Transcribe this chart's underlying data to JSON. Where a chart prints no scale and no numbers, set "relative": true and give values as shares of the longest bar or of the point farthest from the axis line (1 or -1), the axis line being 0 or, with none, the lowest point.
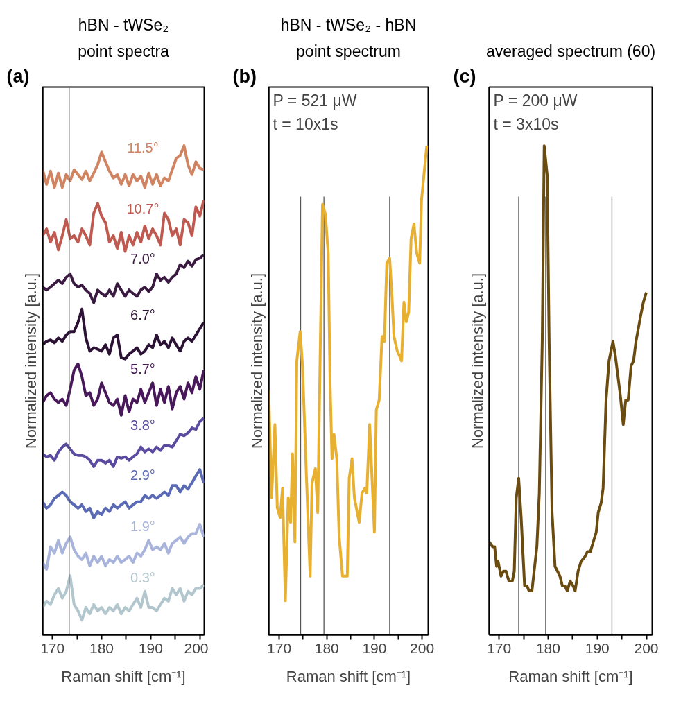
{
  "chart_data": [
    {
      "type": "line",
      "title": "hBN - tWSe₂",
      "subtitle": "point spectra",
      "xlabel": "Raman shift [cm⁻¹]",
      "ylabel": "Normalized intensity [a.u.]",
      "relative": true,
      "xlim": [
        168,
        200.9
      ],
      "xticks": [
        170,
        {
          "value": 175,
          "label": null
        },
        180,
        {
          "value": 185,
          "label": null
        },
        190,
        {
          "value": 195,
          "label": null
        },
        200
      ],
      "ref_lines": [
        {
          "axis": "x",
          "value": 173.4,
          "color": "#555555"
        }
      ],
      "annotations": [
        "(a)"
      ],
      "x": [
        168.0,
        168.8,
        169.6,
        170.4,
        171.2,
        172.0,
        172.8,
        173.6,
        174.4,
        175.2,
        176.0,
        176.8,
        177.6,
        178.4,
        179.2,
        180.0,
        180.8,
        181.6,
        182.4,
        183.2,
        184.0,
        184.8,
        185.6,
        186.4,
        187.2,
        188.0,
        188.8,
        189.6,
        190.4,
        191.2,
        192.0,
        192.8,
        193.6,
        194.4,
        195.2,
        196.0,
        196.8,
        197.6,
        198.4,
        199.2,
        200.0,
        200.8
      ],
      "series": [
        {
          "name": "11.5°",
          "color": "#d08462",
          "values": [
            0.951,
            0.921,
            0.948,
            0.915,
            0.944,
            0.915,
            0.941,
            0.928,
            0.951,
            0.941,
            0.931,
            0.948,
            0.928,
            0.944,
            0.961,
            0.987,
            0.967,
            0.948,
            0.934,
            0.941,
            0.921,
            0.941,
            0.918,
            0.941,
            0.928,
            0.938,
            0.915,
            0.944,
            0.921,
            0.941,
            0.918,
            0.934,
            0.928,
            0.951,
            0.974,
            0.98,
            1.0,
            0.961,
            0.941,
            0.967,
            0.954,
            0.951
          ]
        },
        {
          "name": "10.7°",
          "color": "#c05a50",
          "values": [
            0.816,
            0.83,
            0.803,
            0.823,
            0.787,
            0.816,
            0.849,
            0.81,
            0.816,
            0.803,
            0.83,
            0.816,
            0.797,
            0.862,
            0.882,
            0.856,
            0.843,
            0.803,
            0.816,
            0.79,
            0.823,
            0.784,
            0.816,
            0.797,
            0.823,
            0.803,
            0.836,
            0.81,
            0.83,
            0.816,
            0.797,
            0.862,
            0.849,
            0.816,
            0.83,
            0.797,
            0.849,
            0.843,
            0.816,
            0.875,
            0.856,
            0.889
          ]
        },
        {
          "name": "7.0°",
          "color": "#3a1a40",
          "values": [
            0.711,
            0.705,
            0.711,
            0.718,
            0.725,
            0.718,
            0.731,
            0.738,
            0.718,
            0.711,
            0.715,
            0.705,
            0.698,
            0.679,
            0.705,
            0.698,
            0.692,
            0.705,
            0.692,
            0.718,
            0.705,
            0.692,
            0.705,
            0.698,
            0.692,
            0.705,
            0.711,
            0.702,
            0.711,
            0.738,
            0.725,
            0.731,
            0.721,
            0.731,
            0.738,
            0.757,
            0.751,
            0.764,
            0.754,
            0.767,
            0.77,
            0.777
          ]
        },
        {
          "name": "6.7°",
          "color": "#2c1234",
          "values": [
            0.593,
            0.6,
            0.603,
            0.597,
            0.607,
            0.6,
            0.613,
            0.62,
            0.62,
            0.639,
            0.666,
            0.607,
            0.58,
            0.587,
            0.584,
            0.58,
            0.593,
            0.574,
            0.607,
            0.613,
            0.567,
            0.564,
            0.574,
            0.58,
            0.587,
            0.574,
            0.58,
            0.593,
            0.587,
            0.613,
            0.593,
            0.6,
            0.587,
            0.607,
            0.593,
            0.58,
            0.6,
            0.607,
            0.6,
            0.613,
            0.626,
            0.639
          ]
        },
        {
          "name": "5.7°",
          "color": "#48185a",
          "values": [
            0.475,
            0.489,
            0.495,
            0.482,
            0.475,
            0.482,
            0.469,
            0.502,
            0.541,
            0.554,
            0.528,
            0.489,
            0.495,
            0.469,
            0.482,
            0.515,
            0.495,
            0.475,
            0.469,
            0.482,
            0.449,
            0.489,
            0.456,
            0.482,
            0.475,
            0.502,
            0.475,
            0.495,
            0.515,
            0.469,
            0.502,
            0.475,
            0.508,
            0.462,
            0.495,
            0.508,
            0.482,
            0.515,
            0.495,
            0.528,
            0.502,
            0.541
          ]
        },
        {
          "name": "3.8°",
          "color": "#5a4aa0",
          "values": [
            0.37,
            0.364,
            0.367,
            0.357,
            0.374,
            0.384,
            0.39,
            0.38,
            0.37,
            0.367,
            0.367,
            0.364,
            0.357,
            0.344,
            0.357,
            0.357,
            0.351,
            0.357,
            0.344,
            0.364,
            0.361,
            0.364,
            0.357,
            0.364,
            0.37,
            0.384,
            0.374,
            0.38,
            0.374,
            0.384,
            0.377,
            0.387,
            0.387,
            0.384,
            0.397,
            0.41,
            0.407,
            0.413,
            0.423,
            0.42,
            0.436,
            0.443
          ]
        },
        {
          "name": "2.9°",
          "color": "#5a6ab4",
          "values": [
            0.272,
            0.259,
            0.266,
            0.279,
            0.285,
            0.292,
            0.285,
            0.272,
            0.266,
            0.259,
            0.266,
            0.252,
            0.259,
            0.239,
            0.252,
            0.246,
            0.259,
            0.252,
            0.266,
            0.259,
            0.266,
            0.272,
            0.259,
            0.266,
            0.272,
            0.272,
            0.285,
            0.279,
            0.285,
            0.279,
            0.285,
            0.292,
            0.285,
            0.305,
            0.305,
            0.292,
            0.305,
            0.298,
            0.311,
            0.325,
            0.338,
            0.311
          ]
        },
        {
          "name": "1.9°",
          "color": "#a8b4dc",
          "values": [
            0.148,
            0.134,
            0.18,
            0.167,
            0.193,
            0.167,
            0.187,
            0.2,
            0.174,
            0.161,
            0.154,
            0.167,
            0.141,
            0.161,
            0.148,
            0.161,
            0.141,
            0.154,
            0.148,
            0.161,
            0.148,
            0.154,
            0.161,
            0.148,
            0.167,
            0.161,
            0.174,
            0.193,
            0.174,
            0.18,
            0.174,
            0.187,
            0.167,
            0.187,
            0.193,
            0.2,
            0.187,
            0.2,
            0.207,
            0.207,
            0.226,
            0.2
          ]
        },
        {
          "name": "0.3°",
          "color": "#b2c6ce",
          "values": [
            0.056,
            0.069,
            0.062,
            0.082,
            0.095,
            0.075,
            0.089,
            0.121,
            0.062,
            0.049,
            0.03,
            0.056,
            0.043,
            0.062,
            0.049,
            0.056,
            0.043,
            0.056,
            0.049,
            0.062,
            0.043,
            0.056,
            0.049,
            0.062,
            0.075,
            0.056,
            0.089,
            0.056,
            0.056,
            0.049,
            0.062,
            0.075,
            0.069,
            0.095,
            0.082,
            0.095,
            0.069,
            0.089,
            0.082,
            0.095,
            0.095,
            0.102
          ]
        }
      ]
    },
    {
      "type": "line",
      "title": "hBN - tWSe₂ - hBN",
      "subtitle": "point spectrum",
      "xlabel": "Raman shift [cm⁻¹]",
      "ylabel": "Normalized intensity [a.u.]",
      "relative": true,
      "xlim": [
        167.8,
        201.3
      ],
      "xticks": [
        170,
        {
          "value": 175,
          "label": null
        },
        180,
        {
          "value": 185,
          "label": null
        },
        190,
        {
          "value": 195,
          "label": null
        },
        200
      ],
      "ref_lines": [
        {
          "axis": "x",
          "value": 174.5,
          "color": "#555555"
        },
        {
          "axis": "x",
          "value": 179.4,
          "color": "#555555"
        },
        {
          "axis": "x",
          "value": 193.2,
          "color": "#555555"
        }
      ],
      "annotations": [
        "(b)",
        "P = 521 μW",
        "t = 10x1s"
      ],
      "x": [
        167.8,
        168.4,
        169.1,
        169.6,
        170.2,
        170.7,
        171.3,
        171.9,
        172.4,
        172.8,
        173.3,
        173.7,
        174.4,
        174.9,
        175.7,
        176.5,
        176.9,
        177.6,
        178.1,
        179.1,
        179.7,
        180.3,
        180.7,
        181.1,
        181.5,
        182.1,
        182.6,
        183.3,
        183.8,
        184.3,
        184.7,
        185.3,
        185.8,
        186.8,
        187.4,
        188.0,
        188.4,
        189.0,
        190.0,
        190.4,
        191.0,
        191.6,
        192.1,
        192.6,
        193.2,
        193.7,
        194.1,
        194.8,
        195.3,
        195.7,
        196.2,
        196.7,
        197.2,
        197.7,
        198.3,
        198.9,
        199.5,
        199.9,
        201.0
      ],
      "series": [
        {
          "color": "#e8b030",
          "values": [
            0.5,
            0.28,
            0.43,
            0.26,
            0.24,
            0.3,
            0.07,
            0.28,
            0.23,
            0.37,
            0.19,
            0.56,
            0.62,
            0.55,
            0.33,
            0.12,
            0.31,
            0.34,
            0.25,
            0.88,
            0.86,
            0.78,
            0.51,
            0.36,
            0.41,
            0.36,
            0.2,
            0.12,
            0.12,
            0.12,
            0.32,
            0.36,
            0.28,
            0.23,
            0.29,
            0.3,
            0.29,
            0.43,
            0.21,
            0.46,
            0.48,
            0.61,
            0.6,
            0.76,
            0.77,
            0.69,
            0.61,
            0.58,
            0.57,
            0.56,
            0.68,
            0.64,
            0.66,
            0.81,
            0.84,
            0.78,
            0.76,
            0.89,
            1.0
          ]
        }
      ]
    },
    {
      "type": "line",
      "subtitle": "averaged spectrum (60)",
      "xlabel": "Raman shift [cm⁻¹]",
      "ylabel": "Normalized intensity [a.u.]",
      "relative": true,
      "xlim": [
        168.0,
        201.2
      ],
      "xticks": [
        170,
        {
          "value": 175,
          "label": null
        },
        180,
        {
          "value": 185,
          "label": null
        },
        190,
        {
          "value": 195,
          "label": null
        },
        200
      ],
      "ref_lines": [
        {
          "axis": "x",
          "value": 174.0,
          "color": "#555555"
        },
        {
          "axis": "x",
          "value": 179.5,
          "color": "#555555"
        },
        {
          "axis": "x",
          "value": 193.0,
          "color": "#555555"
        }
      ],
      "annotations": [
        "(c)",
        "P = 200 μW",
        "t = 3x10s"
      ],
      "x": [
        168.0,
        168.7,
        169.1,
        169.5,
        169.8,
        170.4,
        170.9,
        171.4,
        172.0,
        172.7,
        173.1,
        173.5,
        174.0,
        174.5,
        175.2,
        175.7,
        176.1,
        176.7,
        177.7,
        178.2,
        178.8,
        179.2,
        179.8,
        180.2,
        180.8,
        181.4,
        182.4,
        182.9,
        183.4,
        183.9,
        184.5,
        185.1,
        185.5,
        186.1,
        186.7,
        187.5,
        188.0,
        188.6,
        189.2,
        189.8,
        190.2,
        190.8,
        191.2,
        191.8,
        192.4,
        193.2,
        193.7,
        194.7,
        195.3,
        195.8,
        196.3,
        196.9,
        197.4,
        197.9,
        198.8,
        199.4,
        200.0
      ],
      "series": [
        {
          "color": "#6b4c10",
          "values": [
            0.19,
            0.18,
            0.18,
            0.14,
            0.15,
            0.12,
            0.13,
            0.13,
            0.11,
            0.11,
            0.13,
            0.28,
            0.32,
            0.24,
            0.1,
            0.1,
            0.09,
            0.09,
            0.18,
            0.29,
            0.6,
            1.0,
            0.94,
            0.6,
            0.25,
            0.14,
            0.12,
            0.1,
            0.1,
            0.09,
            0.11,
            0.1,
            0.09,
            0.13,
            0.15,
            0.16,
            0.17,
            0.17,
            0.19,
            0.21,
            0.25,
            0.27,
            0.3,
            0.48,
            0.56,
            0.6,
            0.57,
            0.49,
            0.43,
            0.48,
            0.48,
            0.55,
            0.56,
            0.6,
            0.65,
            0.68,
            0.7
          ]
        }
      ]
    }
  ]
}
